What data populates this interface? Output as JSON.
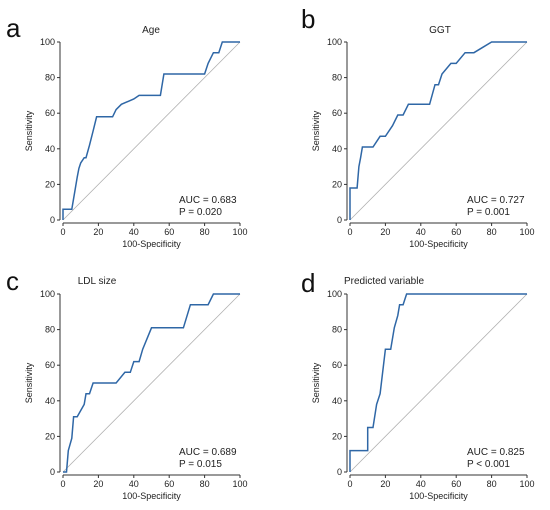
{
  "colors": {
    "roc_line": "#2f67a6",
    "diagonal": "#b0b0b0",
    "axis": "#333333"
  },
  "chart_data": [
    {
      "type": "line",
      "panel": "a",
      "title": "Age",
      "xlabel": "100-Specificity",
      "ylabel": "Sensitivity",
      "xlim": [
        0,
        100
      ],
      "ylim": [
        0,
        100
      ],
      "xticks": [
        "0",
        "20",
        "40",
        "60",
        "80",
        "100"
      ],
      "yticks": [
        "0",
        "20",
        "40",
        "60",
        "80",
        "100"
      ],
      "auc_text": "AUC = 0.683",
      "p_text": "P = 0.020",
      "series": [
        {
          "x": [
            0,
            0,
            1,
            5,
            6,
            7,
            8,
            9,
            10,
            12,
            13,
            15,
            17,
            19,
            21,
            28,
            30,
            33,
            40,
            43,
            50,
            55,
            57,
            60,
            68,
            75,
            80,
            82,
            85,
            88,
            90,
            100
          ],
          "y": [
            0,
            6,
            6,
            6,
            12,
            18,
            24,
            29,
            32,
            35,
            35,
            42,
            50,
            58,
            58,
            58,
            62,
            65,
            68,
            70,
            70,
            70,
            82,
            82,
            82,
            82,
            82,
            88,
            94,
            94,
            100,
            100
          ]
        }
      ],
      "diagonal": true
    },
    {
      "type": "line",
      "panel": "b",
      "title": "GGT",
      "xlabel": "100-Specificity",
      "ylabel": "Sensitivity",
      "xlim": [
        0,
        100
      ],
      "ylim": [
        0,
        100
      ],
      "xticks": [
        "0",
        "20",
        "40",
        "60",
        "80",
        "100"
      ],
      "yticks": [
        "0",
        "20",
        "40",
        "60",
        "80",
        "100"
      ],
      "auc_text": "AUC = 0.727",
      "p_text": "P = 0.001",
      "series": [
        {
          "x": [
            0,
            0,
            4,
            5,
            6,
            7,
            10,
            13,
            17,
            20,
            24,
            27,
            30,
            33,
            45,
            48,
            50,
            52,
            57,
            60,
            65,
            70,
            75,
            80,
            100
          ],
          "y": [
            0,
            18,
            18,
            30,
            35,
            41,
            41,
            41,
            47,
            47,
            53,
            59,
            59,
            65,
            65,
            76,
            76,
            82,
            88,
            88,
            94,
            94,
            97,
            100,
            100
          ]
        }
      ],
      "diagonal": true
    },
    {
      "type": "line",
      "panel": "c",
      "title": "LDL size",
      "xlabel": "100-Specificity",
      "ylabel": "Sensitivity",
      "xlim": [
        0,
        100
      ],
      "ylim": [
        0,
        100
      ],
      "xticks": [
        "0",
        "20",
        "40",
        "60",
        "80",
        "100"
      ],
      "yticks": [
        "0",
        "20",
        "40",
        "60",
        "80",
        "100"
      ],
      "auc_text": "AUC = 0.689",
      "p_text": "P = 0.015",
      "series": [
        {
          "x": [
            0,
            2,
            3,
            5,
            6,
            8,
            12,
            13,
            15,
            17,
            20,
            30,
            35,
            38,
            40,
            43,
            45,
            50,
            68,
            72,
            82,
            85,
            100
          ],
          "y": [
            0,
            0,
            12,
            19,
            31,
            31,
            38,
            44,
            44,
            50,
            50,
            50,
            56,
            56,
            62,
            62,
            69,
            81,
            81,
            94,
            94,
            100,
            100
          ]
        }
      ],
      "diagonal": true
    },
    {
      "type": "line",
      "panel": "d",
      "title": "Predicted variable",
      "xlabel": "100-Specificity",
      "ylabel": "Sensitivity",
      "xlim": [
        0,
        100
      ],
      "ylim": [
        0,
        100
      ],
      "xticks": [
        "0",
        "20",
        "40",
        "60",
        "80",
        "100"
      ],
      "yticks": [
        "0",
        "20",
        "40",
        "60",
        "80",
        "100"
      ],
      "auc_text": "AUC = 0.825",
      "p_text": "P < 0.001",
      "series": [
        {
          "x": [
            0,
            0,
            10,
            10,
            13,
            15,
            17,
            20,
            23,
            25,
            27,
            28,
            30,
            32,
            100
          ],
          "y": [
            0,
            12,
            12,
            25,
            25,
            38,
            44,
            69,
            69,
            81,
            88,
            94,
            94,
            100,
            100
          ]
        }
      ],
      "diagonal": true
    }
  ]
}
